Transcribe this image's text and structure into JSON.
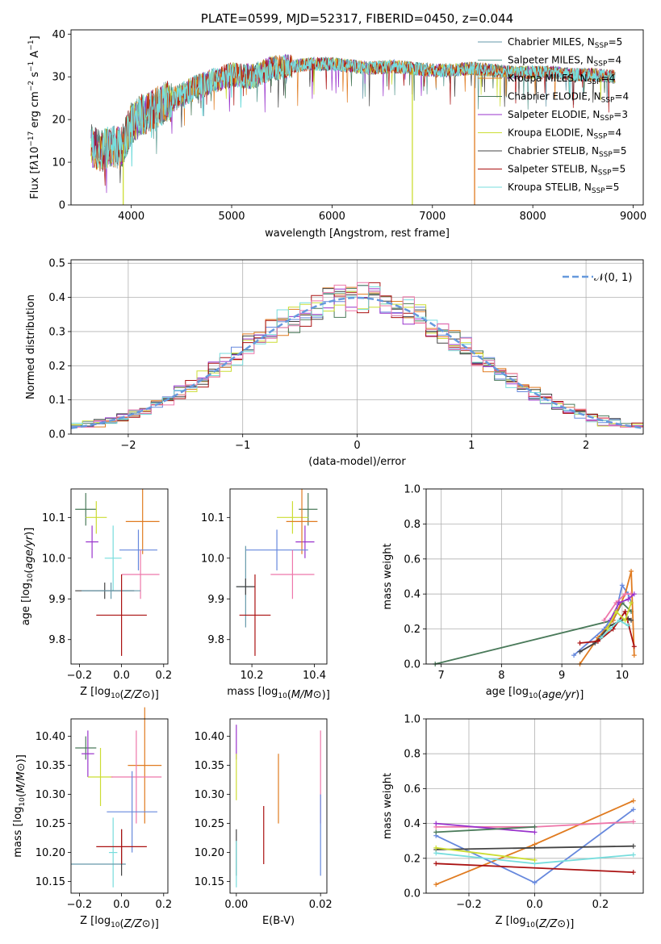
{
  "chart_data": [
    {
      "id": "spectrum",
      "type": "line",
      "title": "PLATE=0599, MJD=52317, FIBERID=0450, z=0.044",
      "xlabel": "wavelength [Angstrom, rest frame]",
      "ylabel_html": "Flux [f<tspan font-style='italic'>λ</tspan>10<tspan dy='-6' font-size='9'>−17</tspan><tspan dy='6'> erg cm</tspan><tspan dy='-6' font-size='9'>−2</tspan><tspan dy='6'> s</tspan><tspan dy='-6' font-size='9'>−1</tspan><tspan dy='6'> A</tspan><tspan dy='-6' font-size='9'>−1</tspan><tspan dy='6'>]</tspan>",
      "xlim": [
        3400,
        9100
      ],
      "ylim": [
        0,
        41
      ],
      "xticks": [
        4000,
        5000,
        6000,
        7000,
        8000,
        9000
      ],
      "yticks": [
        0,
        10,
        20,
        30,
        40
      ],
      "legend_position": "top-right",
      "series": [
        {
          "name": "Chabrier MILES, N",
          "sub": "SSP",
          "suffix": "=5",
          "color": "#6699aa"
        },
        {
          "name": "Salpeter MILES, N",
          "sub": "SSP",
          "suffix": "=4",
          "color": "#5a9a90"
        },
        {
          "name": "Kroupa MILES, N",
          "sub": "SSP",
          "suffix": "=4",
          "color": "#e07b20"
        },
        {
          "name": "Chabrier ELODIE, N",
          "sub": "SSP",
          "suffix": "=4",
          "color": "#4a7a5a"
        },
        {
          "name": "Salpeter ELODIE, N",
          "sub": "SSP",
          "suffix": "=3",
          "color": "#9933cc"
        },
        {
          "name": "Kroupa ELODIE, N",
          "sub": "SSP",
          "suffix": "=4",
          "color": "#ccdd33"
        },
        {
          "name": "Chabrier STELIB, N",
          "sub": "SSP",
          "suffix": "=5",
          "color": "#444444"
        },
        {
          "name": "Salpeter STELIB, N",
          "sub": "SSP",
          "suffix": "=5",
          "color": "#aa1111"
        },
        {
          "name": "Kroupa STELIB, N",
          "sub": "SSP",
          "suffix": "=5",
          "color": "#77dddd"
        }
      ],
      "continuum": {
        "x": [
          3600,
          3700,
          3800,
          3900,
          4000,
          4100,
          4200,
          4300,
          4400,
          4600,
          4800,
          5000,
          5200,
          5400,
          5600,
          5800,
          6000,
          6200,
          6400,
          6600,
          6800,
          7000,
          7200,
          7400,
          7600,
          7800,
          8000,
          8200,
          8400,
          8600,
          8800
        ],
        "y": [
          14,
          12.5,
          14,
          13,
          19,
          21,
          22,
          23.5,
          24.5,
          27,
          29,
          30.5,
          30,
          32,
          32.5,
          33,
          33,
          32.5,
          32,
          32.5,
          32,
          31.5,
          31.5,
          32,
          31.5,
          31,
          31,
          31,
          30.5,
          30.5,
          30
        ]
      },
      "drops": [
        {
          "x": 3920,
          "y": 0,
          "color": "#ccdd33"
        },
        {
          "x": 6800,
          "y": 0,
          "color": "#ccdd33"
        },
        {
          "x": 7420,
          "y": 0,
          "color": "#e07b20"
        }
      ]
    },
    {
      "id": "residuals",
      "type": "histogram",
      "xlabel": "(data-model)/error",
      "ylabel": "Normed distribution",
      "xlim": [
        -2.5,
        2.5
      ],
      "ylim": [
        0,
        0.51
      ],
      "xticks": [
        -2,
        -1,
        0,
        1,
        2
      ],
      "xticklabels": [
        "−2",
        "−1",
        "0",
        "1",
        "2"
      ],
      "yticks": [
        0,
        0.1,
        0.2,
        0.3,
        0.4,
        0.5
      ],
      "yticklabels": [
        "0.0",
        "0.1",
        "0.2",
        "0.3",
        "0.4",
        "0.5"
      ],
      "grid": true,
      "bin_width": 0.1,
      "series_colors": [
        "#6688dd",
        "#e07b20",
        "#4a7a5a",
        "#9933cc",
        "#ccdd33",
        "#444444",
        "#aa1111",
        "#77dddd",
        "#ee77aa"
      ],
      "legend": {
        "label": "𝒩(0, 1)",
        "color": "#6699dd",
        "position": "top-right"
      }
    },
    {
      "id": "age_vs_Z",
      "type": "errorbar",
      "xlabel": "Z [log10(Z/Z⊙)]",
      "ylabel": "age [log10(age/yr)]",
      "xlim": [
        -0.24,
        0.22
      ],
      "ylim": [
        9.74,
        10.17
      ],
      "xticks": [
        -0.2,
        0.0,
        0.2
      ],
      "xticklabels": [
        "−0.2",
        "0.0",
        "0.2"
      ],
      "yticks": [
        9.8,
        9.9,
        10.0,
        10.1
      ],
      "yticklabels": [
        "9.8",
        "9.9",
        "10.0",
        "10.1"
      ],
      "points": [
        {
          "x": -0.17,
          "xe": 0.05,
          "y": 10.12,
          "ye": 0.04,
          "color": "#4a7a5a"
        },
        {
          "x": -0.12,
          "xe": 0.05,
          "y": 10.1,
          "ye": 0.04,
          "color": "#ccdd33"
        },
        {
          "x": -0.14,
          "xe": 0.03,
          "y": 10.04,
          "ye": 0.04,
          "color": "#9933cc"
        },
        {
          "x": 0.1,
          "xe": 0.08,
          "y": 10.09,
          "ye": 0.08,
          "color": "#e07b20"
        },
        {
          "x": 0.08,
          "xe": 0.09,
          "y": 10.02,
          "ye": 0.05,
          "color": "#6688dd"
        },
        {
          "x": 0.09,
          "xe": 0.09,
          "y": 9.96,
          "ye": 0.06,
          "color": "#ee77aa"
        },
        {
          "x": -0.04,
          "xe": 0.04,
          "y": 10.0,
          "ye": 0.08,
          "color": "#77dddd"
        },
        {
          "x": -0.08,
          "xe": 0.14,
          "y": 9.92,
          "ye": 0.02,
          "color": "#444444"
        },
        {
          "x": -0.05,
          "xe": 0.14,
          "y": 9.92,
          "ye": 0.02,
          "color": "#6699aa"
        },
        {
          "x": 0.0,
          "xe": 0.12,
          "y": 9.86,
          "ye": 0.1,
          "color": "#aa1111"
        }
      ]
    },
    {
      "id": "age_vs_mass",
      "type": "errorbar",
      "xlabel": "mass [log10(M/M⊙)]",
      "ylabel": "",
      "xlim": [
        10.13,
        10.44
      ],
      "ylim": [
        9.74,
        10.17
      ],
      "xticks": [
        10.2,
        10.4
      ],
      "xticklabels": [
        "10.2",
        "10.4"
      ],
      "yticks": [
        9.8,
        9.9,
        10.0,
        10.1
      ],
      "yticklabels": [
        "9.8",
        "9.9",
        "10.0",
        "10.1"
      ],
      "points": [
        {
          "x": 10.38,
          "xe": 0.03,
          "y": 10.12,
          "ye": 0.04,
          "color": "#4a7a5a"
        },
        {
          "x": 10.33,
          "xe": 0.05,
          "y": 10.1,
          "ye": 0.04,
          "color": "#ccdd33"
        },
        {
          "x": 10.37,
          "xe": 0.03,
          "y": 10.04,
          "ye": 0.04,
          "color": "#9933cc"
        },
        {
          "x": 10.36,
          "xe": 0.05,
          "y": 10.09,
          "ye": 0.08,
          "color": "#e07b20"
        },
        {
          "x": 10.28,
          "xe": 0.1,
          "y": 10.02,
          "ye": 0.05,
          "color": "#6688dd"
        },
        {
          "x": 10.33,
          "xe": 0.07,
          "y": 9.96,
          "ye": 0.06,
          "color": "#ee77aa"
        },
        {
          "x": 10.18,
          "xe": 0.03,
          "y": 9.93,
          "ye": 0.1,
          "color": "#6699aa"
        },
        {
          "x": 10.18,
          "xe": 0.03,
          "y": 9.93,
          "ye": 0.02,
          "color": "#444444"
        },
        {
          "x": 10.21,
          "xe": 0.05,
          "y": 9.86,
          "ye": 0.1,
          "color": "#aa1111"
        }
      ]
    },
    {
      "id": "weight_vs_age",
      "type": "line",
      "xlabel": "age [log10(age/yr)]",
      "ylabel": "mass weight",
      "xlim": [
        6.75,
        10.35
      ],
      "ylim": [
        0,
        1.0
      ],
      "xticks": [
        7,
        8,
        9,
        10
      ],
      "yticks": [
        0,
        0.2,
        0.4,
        0.6,
        0.8,
        1.0
      ],
      "yticklabels": [
        "0.0",
        "0.2",
        "0.4",
        "0.6",
        "0.8",
        "1.0"
      ],
      "grid": true,
      "series": [
        {
          "color": "#4a7a5a",
          "x": [
            6.9,
            9.85,
            10.0,
            10.15
          ],
          "y": [
            0.0,
            0.25,
            0.35,
            0.3
          ]
        },
        {
          "color": "#6688dd",
          "x": [
            9.2,
            9.7,
            9.9,
            10.0,
            10.1,
            10.15
          ],
          "y": [
            0.05,
            0.2,
            0.3,
            0.45,
            0.4,
            0.35
          ]
        },
        {
          "color": "#e07b20",
          "x": [
            9.3,
            9.6,
            9.85,
            10.05,
            10.15,
            10.2
          ],
          "y": [
            0.0,
            0.15,
            0.25,
            0.4,
            0.53,
            0.05
          ]
        },
        {
          "color": "#444444",
          "x": [
            9.3,
            9.55,
            9.8,
            10.0,
            10.1,
            10.15
          ],
          "y": [
            0.07,
            0.12,
            0.22,
            0.25,
            0.26,
            0.25
          ]
        },
        {
          "color": "#aa1111",
          "x": [
            9.3,
            9.6,
            9.85,
            10.05,
            10.2
          ],
          "y": [
            0.12,
            0.13,
            0.2,
            0.3,
            0.1
          ]
        },
        {
          "color": "#ee77aa",
          "x": [
            9.7,
            9.9,
            10.05,
            10.15
          ],
          "y": [
            0.25,
            0.35,
            0.4,
            0.4
          ]
        },
        {
          "color": "#9933cc",
          "x": [
            9.8,
            9.95,
            10.1,
            10.2
          ],
          "y": [
            0.25,
            0.35,
            0.37,
            0.4
          ]
        },
        {
          "color": "#77dddd",
          "x": [
            9.65,
            9.8,
            9.95,
            10.1
          ],
          "y": [
            0.15,
            0.2,
            0.25,
            0.22
          ]
        },
        {
          "color": "#ccdd33",
          "x": [
            9.75,
            9.9,
            10.05,
            10.15
          ],
          "y": [
            0.2,
            0.3,
            0.25,
            0.35
          ]
        }
      ]
    },
    {
      "id": "mass_vs_Z",
      "type": "errorbar",
      "xlabel": "Z [log10(Z/Z⊙)]",
      "ylabel": "mass [log10(M/M⊙)]",
      "xlim": [
        -0.24,
        0.22
      ],
      "ylim": [
        10.13,
        10.43
      ],
      "xticks": [
        -0.2,
        0.0,
        0.2
      ],
      "xticklabels": [
        "−0.2",
        "0.0",
        "0.2"
      ],
      "yticks": [
        10.15,
        10.2,
        10.25,
        10.3,
        10.35,
        10.4
      ],
      "yticklabels": [
        "10.15",
        "10.20",
        "10.25",
        "10.30",
        "10.35",
        "10.40"
      ],
      "points": [
        {
          "x": -0.17,
          "xe": 0.05,
          "y": 10.38,
          "ye": 0.02,
          "color": "#4a7a5a"
        },
        {
          "x": -0.16,
          "xe": 0.03,
          "y": 10.37,
          "ye": 0.04,
          "color": "#9933cc"
        },
        {
          "x": -0.1,
          "xe": 0.06,
          "y": 10.33,
          "ye": 0.05,
          "color": "#ccdd33"
        },
        {
          "x": 0.11,
          "xe": 0.08,
          "y": 10.35,
          "ye": 0.1,
          "color": "#e07b20"
        },
        {
          "x": 0.07,
          "xe": 0.12,
          "y": 10.33,
          "ye": 0.08,
          "color": "#ee77aa"
        },
        {
          "x": 0.05,
          "xe": 0.12,
          "y": 10.27,
          "ye": 0.07,
          "color": "#6688dd"
        },
        {
          "x": -0.04,
          "xe": 0.02,
          "y": 10.2,
          "ye": 0.06,
          "color": "#77dddd"
        },
        {
          "x": -0.11,
          "xe": 0.13,
          "y": 10.18,
          "ye": 0.0,
          "color": "#6699aa"
        },
        {
          "x": 0.0,
          "xe": 0.0,
          "y": 10.2,
          "ye": 0.04,
          "color": "#444444"
        },
        {
          "x": 0.0,
          "xe": 0.12,
          "y": 10.21,
          "ye": 0.03,
          "color": "#aa1111"
        }
      ]
    },
    {
      "id": "mass_vs_EBV",
      "type": "errorbar",
      "xlabel": "E(B-V)",
      "ylabel": "",
      "xlim": [
        -0.0015,
        0.0215
      ],
      "ylim": [
        10.13,
        10.43
      ],
      "xticks": [
        0.0,
        0.02
      ],
      "xticklabels": [
        "0.00",
        "0.02"
      ],
      "yticks": [
        10.15,
        10.2,
        10.25,
        10.3,
        10.35,
        10.4
      ],
      "yticklabels": [
        "10.15",
        "10.20",
        "10.25",
        "10.30",
        "10.35",
        "10.40"
      ],
      "points": [
        {
          "x": 0.0,
          "xe": 0.0,
          "y": 10.39,
          "ye": 0.03,
          "color": "#9933cc"
        },
        {
          "x": 0.0,
          "xe": 0.0,
          "y": 10.33,
          "ye": 0.04,
          "color": "#ccdd33"
        },
        {
          "x": 0.0,
          "xe": 0.0,
          "y": 10.2,
          "ye": 0.04,
          "color": "#444444"
        },
        {
          "x": 0.0,
          "xe": 0.0,
          "y": 10.18,
          "ye": 0.04,
          "color": "#77dddd"
        },
        {
          "x": 0.0065,
          "xe": 0.0,
          "y": 10.23,
          "ye": 0.05,
          "color": "#aa1111"
        },
        {
          "x": 0.01,
          "xe": 0.0,
          "y": 10.31,
          "ye": 0.06,
          "color": "#e07b20"
        },
        {
          "x": 0.02,
          "xe": 0.0,
          "y": 10.33,
          "ye": 0.08,
          "color": "#ee77aa"
        },
        {
          "x": 0.02,
          "xe": 0.0,
          "y": 10.23,
          "ye": 0.07,
          "color": "#6688dd"
        }
      ]
    },
    {
      "id": "weight_vs_Z",
      "type": "line",
      "xlabel": "Z [log10(Z/Z⊙)]",
      "ylabel": "mass weight",
      "xlim": [
        -0.33,
        0.33
      ],
      "ylim": [
        0,
        1.0
      ],
      "xticks": [
        -0.2,
        0.0,
        0.2
      ],
      "xticklabels": [
        "−0.2",
        "0.0",
        "0.2"
      ],
      "yticks": [
        0,
        0.2,
        0.4,
        0.6,
        0.8,
        1.0
      ],
      "yticklabels": [
        "0.0",
        "0.2",
        "0.4",
        "0.6",
        "0.8",
        "1.0"
      ],
      "grid": true,
      "series": [
        {
          "color": "#e07b20",
          "x": [
            -0.3,
            0.0,
            0.3
          ],
          "y": [
            0.05,
            0.28,
            0.53
          ]
        },
        {
          "color": "#6688dd",
          "x": [
            -0.3,
            0.0,
            0.3
          ],
          "y": [
            0.33,
            0.06,
            0.48
          ]
        },
        {
          "color": "#ee77aa",
          "x": [
            -0.3,
            0.0,
            0.3
          ],
          "y": [
            0.38,
            0.38,
            0.41
          ]
        },
        {
          "color": "#9933cc",
          "x": [
            -0.3,
            0.0
          ],
          "y": [
            0.4,
            0.35
          ]
        },
        {
          "color": "#4a7a5a",
          "x": [
            -0.3,
            0.0
          ],
          "y": [
            0.35,
            0.38
          ]
        },
        {
          "color": "#444444",
          "x": [
            -0.3,
            0.0,
            0.3
          ],
          "y": [
            0.25,
            0.26,
            0.27
          ]
        },
        {
          "color": "#77dddd",
          "x": [
            -0.3,
            0.0,
            0.3
          ],
          "y": [
            0.23,
            0.17,
            0.22
          ]
        },
        {
          "color": "#ccdd33",
          "x": [
            -0.3,
            0.0
          ],
          "y": [
            0.26,
            0.19
          ]
        },
        {
          "color": "#aa1111",
          "x": [
            -0.3,
            0.3
          ],
          "y": [
            0.17,
            0.12
          ]
        }
      ]
    }
  ]
}
